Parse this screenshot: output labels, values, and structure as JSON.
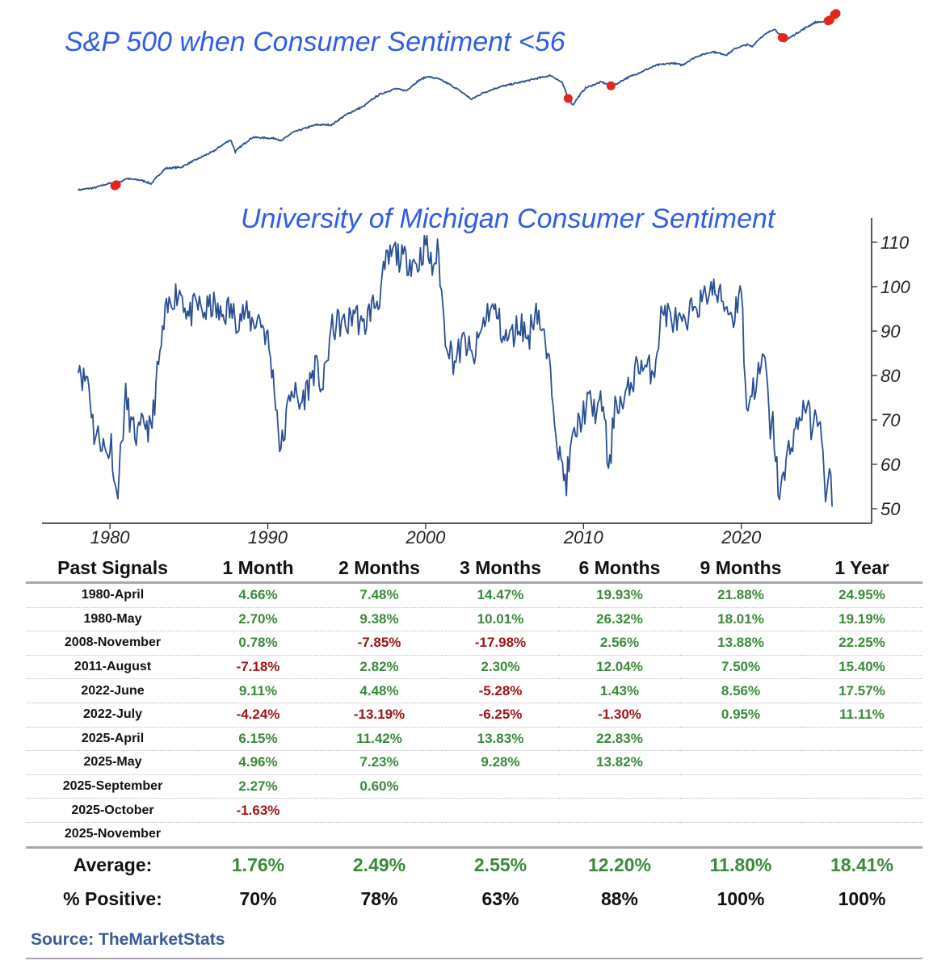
{
  "colors": {
    "line": "#2a4f94",
    "marker": "#e0281c",
    "title": "#2e5de8",
    "positive": "#3a8a3a",
    "negative": "#a01414"
  },
  "chart_data": [
    {
      "type": "line",
      "title": "S&P 500 when Consumer Sentiment <56",
      "scale": "log",
      "grid": false,
      "x": [
        1978.0,
        1979.0,
        1980.0,
        1980.3,
        1981.0,
        1982.0,
        1982.6,
        1983.5,
        1984.5,
        1985.5,
        1986.5,
        1987.6,
        1987.9,
        1989.0,
        1990.5,
        1990.8,
        1991.5,
        1993.0,
        1994.0,
        1995.0,
        1996.0,
        1997.0,
        1998.0,
        1998.7,
        1999.5,
        2000.0,
        2000.7,
        2001.5,
        2002.8,
        2003.5,
        2004.5,
        2006.0,
        2007.8,
        2008.5,
        2008.9,
        2009.2,
        2010.0,
        2011.0,
        2011.7,
        2012.5,
        2013.5,
        2014.5,
        2015.5,
        2016.1,
        2017.0,
        2018.0,
        2018.9,
        2019.5,
        2020.2,
        2020.5,
        2021.0,
        2021.9,
        2022.4,
        2022.8,
        2023.5,
        2024.5,
        2025.2,
        2025.4,
        2025.7,
        2025.8
      ],
      "y": [
        95,
        100,
        112,
        105,
        125,
        120,
        110,
        160,
        165,
        200,
        240,
        320,
        240,
        340,
        330,
        310,
        380,
        460,
        460,
        600,
        720,
        960,
        1100,
        1050,
        1350,
        1480,
        1400,
        1200,
        850,
        990,
        1140,
        1300,
        1520,
        1280,
        870,
        740,
        1120,
        1300,
        1160,
        1400,
        1650,
        1950,
        2050,
        1950,
        2400,
        2700,
        2500,
        2950,
        3200,
        3050,
        3750,
        4700,
        3800,
        3700,
        4400,
        5500,
        5600,
        5800,
        6600,
        6800
      ],
      "markers_x": [
        1980.3,
        1980.4,
        2008.9,
        2011.6,
        2022.4,
        2022.5,
        2025.3,
        2025.4,
        2025.7,
        2025.8
      ]
    },
    {
      "type": "line",
      "title": "University of Michigan Consumer Sentiment",
      "x_ticks": [
        "1980",
        "1990",
        "2000",
        "2010",
        "2020"
      ],
      "y_ticks": [
        "50",
        "60",
        "70",
        "80",
        "90",
        "100",
        "110"
      ],
      "xlim": [
        1978,
        2026
      ],
      "ylim": [
        48,
        112
      ],
      "grid": false,
      "x": [
        1978.0,
        1978.3,
        1978.6,
        1979.0,
        1979.4,
        1979.8,
        1980.1,
        1980.4,
        1980.7,
        1981.0,
        1981.4,
        1981.8,
        1982.2,
        1982.6,
        1983.0,
        1983.5,
        1984.0,
        1984.5,
        1985.0,
        1985.5,
        1986.0,
        1986.5,
        1987.0,
        1987.5,
        1988.0,
        1988.5,
        1989.0,
        1989.5,
        1990.0,
        1990.5,
        1990.8,
        1991.0,
        1991.5,
        1992.0,
        1992.5,
        1993.0,
        1993.5,
        1994.0,
        1994.5,
        1995.0,
        1995.5,
        1996.0,
        1996.5,
        1997.0,
        1997.5,
        1998.0,
        1998.5,
        1999.0,
        1999.5,
        2000.0,
        2000.4,
        2000.8,
        2001.2,
        2001.8,
        2002.5,
        2003.0,
        2003.5,
        2004.0,
        2004.5,
        2005.0,
        2005.5,
        2006.0,
        2006.5,
        2007.0,
        2007.5,
        2008.0,
        2008.5,
        2008.9,
        2009.3,
        2009.8,
        2010.3,
        2010.8,
        2011.3,
        2011.6,
        2012.0,
        2012.5,
        2013.0,
        2013.5,
        2014.0,
        2014.5,
        2015.0,
        2015.5,
        2016.0,
        2016.5,
        2017.0,
        2017.5,
        2018.0,
        2018.5,
        2019.0,
        2019.5,
        2020.0,
        2020.3,
        2020.6,
        2021.0,
        2021.5,
        2021.8,
        2022.0,
        2022.4,
        2022.8,
        2023.0,
        2023.5,
        2024.0,
        2024.5,
        2025.0,
        2025.3,
        2025.6,
        2025.8
      ],
      "y": [
        84,
        79,
        80,
        67,
        66,
        62,
        65,
        52,
        63,
        75,
        68,
        66,
        70,
        67,
        80,
        93,
        98,
        99,
        93,
        96,
        94,
        96,
        93,
        95,
        93,
        94,
        92,
        93,
        88,
        75,
        63,
        66,
        78,
        73,
        77,
        82,
        77,
        90,
        92,
        91,
        95,
        90,
        95,
        97,
        105,
        108,
        106,
        106,
        105,
        110,
        104,
        108,
        90,
        83,
        88,
        83,
        90,
        95,
        94,
        88,
        89,
        92,
        88,
        96,
        88,
        78,
        61,
        56,
        65,
        70,
        74,
        72,
        74,
        56,
        75,
        73,
        78,
        83,
        81,
        82,
        95,
        93,
        92,
        90,
        97,
        96,
        100,
        98,
        96,
        93,
        101,
        72,
        76,
        79,
        84,
        68,
        69,
        53,
        58,
        64,
        68,
        74,
        68,
        72,
        52,
        57,
        51
      ]
    }
  ],
  "table": {
    "headers": [
      "Past Signals",
      "1 Month",
      "2 Months",
      "3 Months",
      "6 Months",
      "9 Months",
      "1 Year"
    ],
    "rows": [
      [
        "1980-April",
        "4.66%",
        "7.48%",
        "14.47%",
        "19.93%",
        "21.88%",
        "24.95%"
      ],
      [
        "1980-May",
        "2.70%",
        "9.38%",
        "10.01%",
        "26.32%",
        "18.01%",
        "19.19%"
      ],
      [
        "2008-November",
        "0.78%",
        "-7.85%",
        "-17.98%",
        "2.56%",
        "13.88%",
        "22.25%"
      ],
      [
        "2011-August",
        "-7.18%",
        "2.82%",
        "2.30%",
        "12.04%",
        "7.50%",
        "15.40%"
      ],
      [
        "2022-June",
        "9.11%",
        "4.48%",
        "-5.28%",
        "1.43%",
        "8.56%",
        "17.57%"
      ],
      [
        "2022-July",
        "-4.24%",
        "-13.19%",
        "-6.25%",
        "-1.30%",
        "0.95%",
        "11.11%"
      ],
      [
        "2025-April",
        "6.15%",
        "11.42%",
        "13.83%",
        "22.83%",
        "",
        ""
      ],
      [
        "2025-May",
        "4.96%",
        "7.23%",
        "9.28%",
        "13.82%",
        "",
        ""
      ],
      [
        "2025-September",
        "2.27%",
        "0.60%",
        "",
        "",
        "",
        ""
      ],
      [
        "2025-October",
        "-1.63%",
        "",
        "",
        "",
        "",
        ""
      ],
      [
        "2025-November",
        "",
        "",
        "",
        "",
        "",
        ""
      ]
    ],
    "average": [
      "Average:",
      "1.76%",
      "2.49%",
      "2.55%",
      "12.20%",
      "11.80%",
      "18.41%"
    ],
    "percent_positive": [
      "% Positive:",
      "70%",
      "78%",
      "63%",
      "88%",
      "100%",
      "100%"
    ]
  },
  "source": "Source: TheMarketStats"
}
